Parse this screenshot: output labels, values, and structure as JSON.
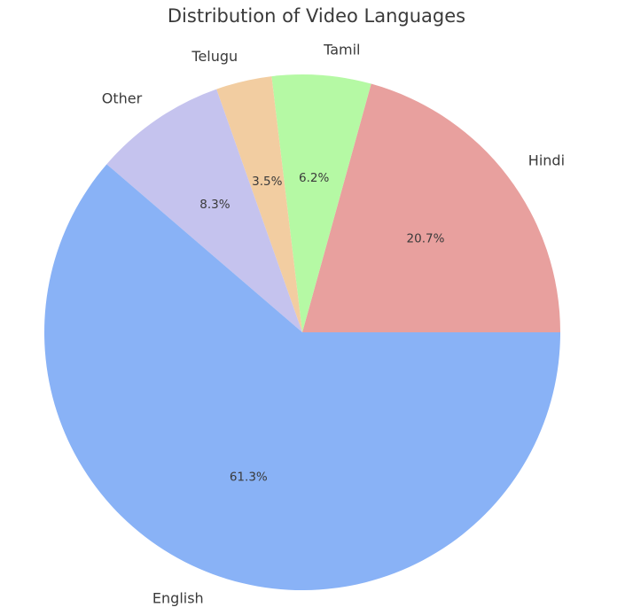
{
  "chart_data": {
    "type": "pie",
    "title": "Distribution of Video Languages",
    "start_angle_deg": 0,
    "direction": "counterclockwise",
    "slices": [
      {
        "label": "Hindi",
        "value": 20.7,
        "pct_label": "20.7%",
        "color": "#e8a09e"
      },
      {
        "label": "Tamil",
        "value": 6.2,
        "pct_label": "6.2%",
        "color": "#b5f9a4"
      },
      {
        "label": "Telugu",
        "value": 3.5,
        "pct_label": "3.5%",
        "color": "#f2cda1"
      },
      {
        "label": "Other",
        "value": 8.3,
        "pct_label": "8.3%",
        "color": "#c5c3ee"
      },
      {
        "label": "English",
        "value": 61.3,
        "pct_label": "61.3%",
        "color": "#89b2f6"
      }
    ]
  }
}
